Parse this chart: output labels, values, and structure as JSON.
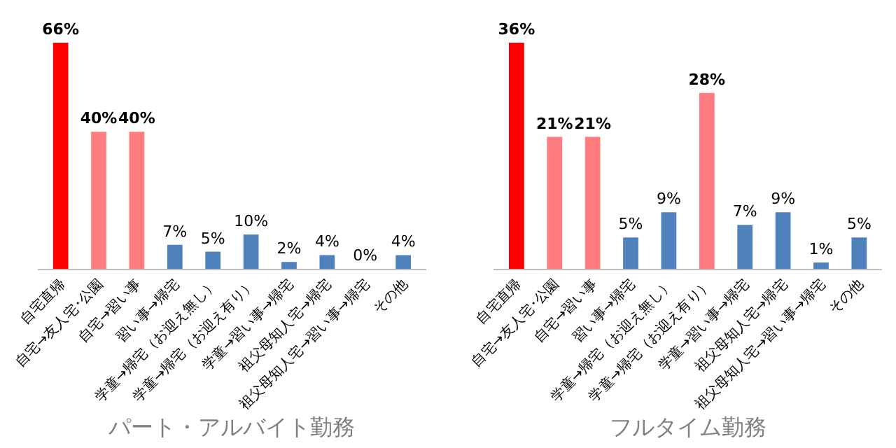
{
  "chart_data": [
    {
      "type": "bar",
      "xlabel": "パート・アルバイト勤務",
      "categories": [
        "自宅直帰",
        "自宅→友人宅･公園",
        "自宅→習い事",
        "習い事→帰宅",
        "学童→帰宅（お迎え無し）",
        "学童→帰宅（お迎え有り）",
        "学童→習い事→帰宅",
        "祖父母知人宅→帰宅",
        "祖父母知人宅→習い事→帰宅",
        "その他"
      ],
      "values": [
        66,
        40,
        40,
        7,
        5,
        10,
        2,
        4,
        0,
        4
      ],
      "value_labels": [
        "66%",
        "40%",
        "40%",
        "7%",
        "5%",
        "10%",
        "2%",
        "4%",
        "0%",
        "4%"
      ],
      "colors": [
        "#ff0000",
        "#ff7c80",
        "#ff7c80",
        "#4f81bd",
        "#4f81bd",
        "#4f81bd",
        "#4f81bd",
        "#4f81bd",
        "#4f81bd",
        "#4f81bd"
      ],
      "legend": false,
      "tick_labels": "x"
    },
    {
      "type": "bar",
      "xlabel": "フルタイム勤務",
      "categories": [
        "自宅直帰",
        "自宅→友人宅･公園",
        "自宅→習い事",
        "習い事→帰宅",
        "学童→帰宅（お迎え無し）",
        "学童→帰宅（お迎え有り）",
        "学童→習い事→帰宅",
        "祖父母知人宅→帰宅",
        "祖父母知人宅→習い事→帰宅",
        "その他"
      ],
      "values": [
        36,
        21,
        21,
        5,
        9,
        28,
        7,
        9,
        1,
        5
      ],
      "value_labels": [
        "36%",
        "21%",
        "21%",
        "5%",
        "9%",
        "28%",
        "7%",
        "9%",
        "1%",
        "5%"
      ],
      "colors": [
        "#ff0000",
        "#ff7c80",
        "#ff7c80",
        "#4f81bd",
        "#4f81bd",
        "#ff7c80",
        "#4f81bd",
        "#4f81bd",
        "#4f81bd",
        "#4f81bd"
      ],
      "legend": false,
      "tick_labels": "x"
    }
  ]
}
